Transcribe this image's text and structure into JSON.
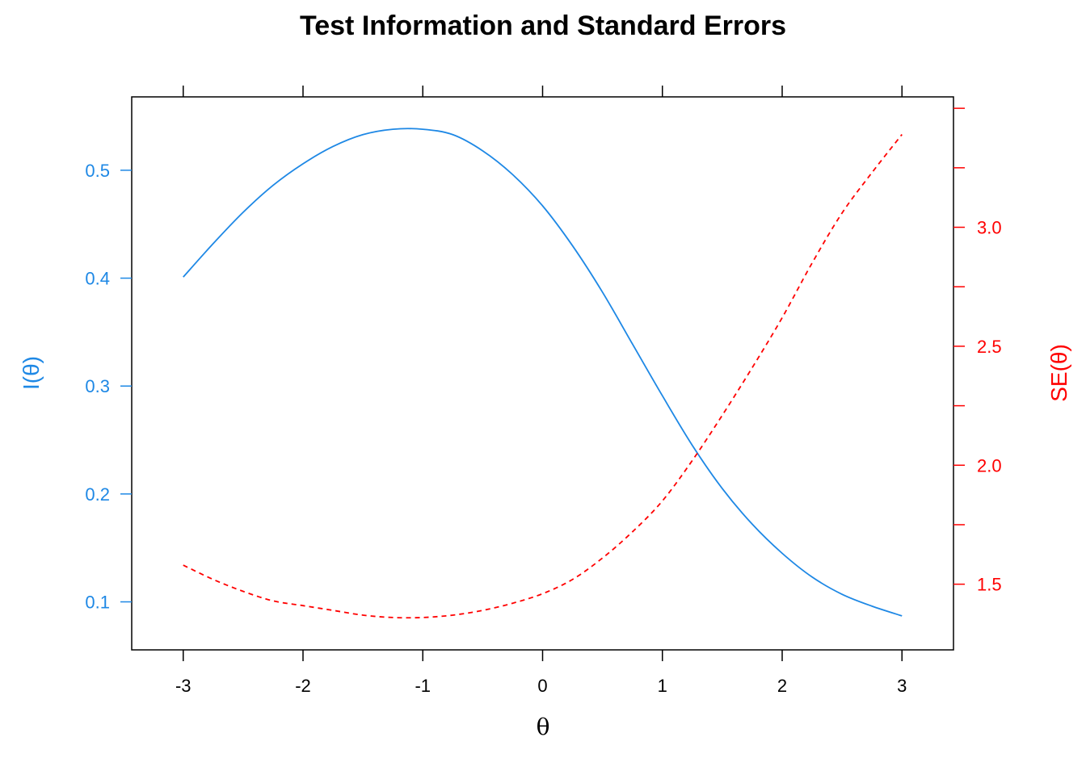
{
  "chart_data": {
    "type": "line",
    "title": "Test Information and Standard Errors",
    "xlabel": "θ",
    "ylabel_left": "I(θ)",
    "ylabel_right": "SE(θ)",
    "xlim": [
      -3.43,
      3.43
    ],
    "ylim_left": [
      0.0555,
      0.568
    ],
    "ylim_right": [
      1.224,
      3.548
    ],
    "x_ticks": [
      "-3",
      "-2",
      "-1",
      "0",
      "1",
      "2",
      "3"
    ],
    "y_left_ticks": [
      "0.1",
      "0.2",
      "0.3",
      "0.4",
      "0.5"
    ],
    "y_right_ticks": [
      "1.5",
      "2.0",
      "2.5",
      "3.0"
    ],
    "grid": false,
    "colors": {
      "information": "#1E88E5",
      "se": "#FF0000",
      "axis": "#000000"
    },
    "series": [
      {
        "axis": "left",
        "style": "solid",
        "x": [
          -3.0,
          -2.75,
          -2.5,
          -2.25,
          -2.0,
          -1.75,
          -1.5,
          -1.25,
          -1.0,
          -0.75,
          -0.5,
          -0.25,
          0.0,
          0.25,
          0.5,
          0.75,
          1.0,
          1.25,
          1.5,
          1.75,
          2.0,
          2.25,
          2.5,
          2.75,
          3.0
        ],
        "values": [
          0.401,
          0.432,
          0.461,
          0.486,
          0.506,
          0.522,
          0.533,
          0.538,
          0.538,
          0.533,
          0.518,
          0.496,
          0.467,
          0.43,
          0.387,
          0.339,
          0.291,
          0.245,
          0.205,
          0.172,
          0.145,
          0.123,
          0.107,
          0.096,
          0.087
        ]
      },
      {
        "axis": "right",
        "style": "dashed",
        "x": [
          -3.0,
          -2.75,
          -2.5,
          -2.25,
          -2.0,
          -1.75,
          -1.5,
          -1.25,
          -1.0,
          -0.75,
          -0.5,
          -0.25,
          0.0,
          0.25,
          0.5,
          0.75,
          1.0,
          1.25,
          1.5,
          1.75,
          2.0,
          2.25,
          2.5,
          2.75,
          3.0
        ],
        "values": [
          1.58,
          1.52,
          1.47,
          1.43,
          1.41,
          1.39,
          1.37,
          1.36,
          1.36,
          1.37,
          1.39,
          1.42,
          1.46,
          1.52,
          1.61,
          1.72,
          1.85,
          2.02,
          2.21,
          2.41,
          2.62,
          2.85,
          3.06,
          3.23,
          3.39
        ]
      }
    ]
  }
}
